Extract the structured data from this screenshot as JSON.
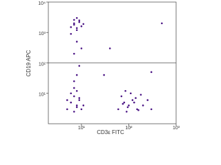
{
  "chart_data": {
    "type": "scatter",
    "x_label": "CD3ε FITC",
    "y_label": "CD19 APC",
    "color": "#4b1585",
    "log_x": true,
    "log_y": true,
    "xlim": [
      2,
      1000
    ],
    "ylim": [
      1,
      10000
    ],
    "xticks": [
      {
        "value": 10,
        "label": "10¹"
      },
      {
        "value": 100,
        "label": "10²"
      },
      {
        "value": 1000,
        "label": "10³"
      }
    ],
    "yticks": [
      {
        "value": 10,
        "label": "10¹"
      },
      {
        "value": 100,
        "label": "10²"
      },
      {
        "value": 1000,
        "label": "10³"
      },
      {
        "value": 10000,
        "label": "10⁴"
      }
    ],
    "gate_y": 100,
    "x": [
      6,
      7,
      8,
      9,
      7,
      8,
      10,
      6,
      9,
      8,
      11,
      7,
      8,
      7,
      9,
      8,
      10,
      7,
      5,
      6,
      7,
      8,
      9,
      10,
      6,
      7,
      8,
      9,
      11,
      5,
      7,
      8,
      60,
      80,
      100,
      120,
      150,
      70,
      90,
      110,
      130,
      200,
      250,
      85,
      95,
      140,
      160,
      75,
      180,
      300,
      40,
      300,
      500,
      30
    ],
    "y": [
      1500,
      2000,
      1200,
      2500,
      1800,
      3000,
      1600,
      900,
      2200,
      1400,
      1900,
      2600,
      500,
      200,
      80,
      40,
      300,
      25,
      3,
      5,
      8,
      4,
      6,
      3,
      10,
      2.5,
      12,
      7,
      4,
      6,
      15,
      3.5,
      3,
      5,
      4,
      6,
      3,
      8,
      2.5,
      10,
      5,
      4,
      6,
      12,
      3.5,
      7,
      2.8,
      4.5,
      9,
      3,
      300,
      50,
      2000,
      40
    ]
  }
}
